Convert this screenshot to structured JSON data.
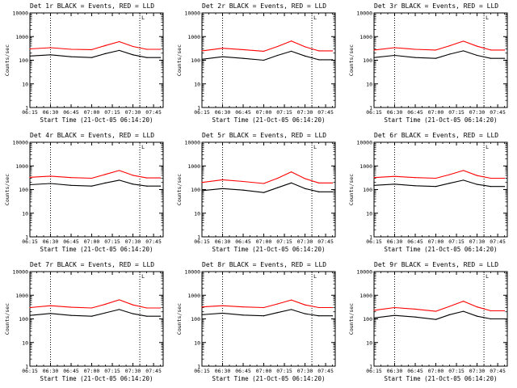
{
  "chart_data": [
    {
      "type": "line",
      "title": "Det 1r BLACK = Events, RED = LLD",
      "xlabel": "Start Time (21-Oct-05 06:14:20)",
      "ylabel": "Counts/sec",
      "yscale": "log",
      "ylim": [
        1,
        10000
      ],
      "x_ticks": [
        "06:15",
        "06:30",
        "06:45",
        "07:00",
        "07:15",
        "07:30",
        "07:45"
      ],
      "y_ticks": [
        "1",
        "10",
        "100",
        "1000",
        "10000"
      ],
      "vlines": [
        "06:30",
        "07:35"
      ],
      "marker_label": "L",
      "x": [
        "06:15",
        "06:30",
        "06:45",
        "07:00",
        "07:10",
        "07:20",
        "07:30",
        "07:40",
        "07:50"
      ],
      "series": [
        {
          "name": "BLACK = Events",
          "color": "#000000",
          "values": [
            150,
            170,
            140,
            130,
            190,
            260,
            170,
            130,
            130
          ]
        },
        {
          "name": "RED = LLD",
          "color": "#ff0000",
          "values": [
            300,
            340,
            290,
            280,
            420,
            610,
            380,
            290,
            290
          ]
        }
      ]
    },
    {
      "type": "line",
      "title": "Det 2r BLACK = Events, RED = LLD",
      "xlabel": "Start Time (21-Oct-05 06:14:20)",
      "ylabel": "Counts/sec",
      "yscale": "log",
      "ylim": [
        1,
        10000
      ],
      "x_ticks": [
        "06:15",
        "06:30",
        "06:45",
        "07:00",
        "07:15",
        "07:30",
        "07:45"
      ],
      "y_ticks": [
        "1",
        "10",
        "100",
        "1000",
        "10000"
      ],
      "vlines": [
        "06:30",
        "07:35"
      ],
      "marker_label": "L",
      "x": [
        "06:15",
        "06:30",
        "06:45",
        "07:00",
        "07:10",
        "07:20",
        "07:30",
        "07:40",
        "07:50"
      ],
      "series": [
        {
          "name": "BLACK = Events",
          "color": "#000000",
          "values": [
            110,
            140,
            120,
            100,
            160,
            240,
            150,
            105,
            105
          ]
        },
        {
          "name": "RED = LLD",
          "color": "#ff0000",
          "values": [
            250,
            320,
            280,
            240,
            380,
            650,
            370,
            250,
            250
          ]
        }
      ]
    },
    {
      "type": "line",
      "title": "Det 3r BLACK = Events, RED = LLD",
      "xlabel": "Start Time (21-Oct-05 06:14:20)",
      "ylabel": "Counts/sec",
      "yscale": "log",
      "ylim": [
        1,
        10000
      ],
      "x_ticks": [
        "06:15",
        "06:30",
        "06:45",
        "07:00",
        "07:15",
        "07:30",
        "07:45"
      ],
      "y_ticks": [
        "1",
        "10",
        "100",
        "1000",
        "10000"
      ],
      "vlines": [
        "06:30",
        "07:35"
      ],
      "marker_label": "L",
      "x": [
        "06:15",
        "06:30",
        "06:45",
        "07:00",
        "07:10",
        "07:20",
        "07:30",
        "07:40",
        "07:50"
      ],
      "series": [
        {
          "name": "BLACK = Events",
          "color": "#000000",
          "values": [
            130,
            160,
            130,
            120,
            180,
            250,
            160,
            120,
            120
          ]
        },
        {
          "name": "RED = LLD",
          "color": "#ff0000",
          "values": [
            270,
            340,
            290,
            270,
            410,
            640,
            390,
            270,
            270
          ]
        }
      ]
    },
    {
      "type": "line",
      "title": "Det 4r BLACK = Events, RED = LLD",
      "xlabel": "Start Time (21-Oct-05 06:14:20)",
      "ylabel": "Counts/sec",
      "yscale": "log",
      "ylim": [
        1,
        10000
      ],
      "x_ticks": [
        "06:15",
        "06:30",
        "06:45",
        "07:00",
        "07:15",
        "07:30",
        "07:45"
      ],
      "y_ticks": [
        "1",
        "10",
        "100",
        "1000",
        "10000"
      ],
      "vlines": [
        "06:30",
        "07:35"
      ],
      "marker_label": "L",
      "x": [
        "06:15",
        "06:30",
        "06:45",
        "07:00",
        "07:10",
        "07:20",
        "07:30",
        "07:40",
        "07:50"
      ],
      "series": [
        {
          "name": "BLACK = Events",
          "color": "#000000",
          "values": [
            160,
            180,
            150,
            140,
            190,
            250,
            170,
            140,
            140
          ]
        },
        {
          "name": "RED = LLD",
          "color": "#ff0000",
          "values": [
            330,
            370,
            320,
            300,
            440,
            640,
            400,
            310,
            310
          ]
        }
      ]
    },
    {
      "type": "line",
      "title": "Det 5r BLACK = Events, RED = LLD",
      "xlabel": "Start Time (21-Oct-05 06:14:20)",
      "ylabel": "Counts/sec",
      "yscale": "log",
      "ylim": [
        1,
        10000
      ],
      "x_ticks": [
        "06:15",
        "06:30",
        "06:45",
        "07:00",
        "07:15",
        "07:30",
        "07:45"
      ],
      "y_ticks": [
        "1",
        "10",
        "100",
        "1000",
        "10000"
      ],
      "vlines": [
        "06:30",
        "07:35"
      ],
      "marker_label": "L",
      "x": [
        "06:15",
        "06:30",
        "06:45",
        "07:00",
        "07:10",
        "07:20",
        "07:30",
        "07:40",
        "07:50"
      ],
      "series": [
        {
          "name": "BLACK = Events",
          "color": "#000000",
          "values": [
            90,
            110,
            95,
            75,
            120,
            190,
            110,
            80,
            80
          ]
        },
        {
          "name": "RED = LLD",
          "color": "#ff0000",
          "values": [
            200,
            260,
            220,
            180,
            300,
            560,
            290,
            190,
            190
          ]
        }
      ]
    },
    {
      "type": "line",
      "title": "Det 6r BLACK = Events, RED = LLD",
      "xlabel": "Start Time (21-Oct-05 06:14:20)",
      "ylabel": "Counts/sec",
      "yscale": "log",
      "ylim": [
        1,
        10000
      ],
      "x_ticks": [
        "06:15",
        "06:30",
        "06:45",
        "07:00",
        "07:15",
        "07:30",
        "07:45"
      ],
      "y_ticks": [
        "1",
        "10",
        "100",
        "1000",
        "10000"
      ],
      "vlines": [
        "06:30",
        "07:35"
      ],
      "marker_label": "L",
      "x": [
        "06:15",
        "06:30",
        "06:45",
        "07:00",
        "07:10",
        "07:20",
        "07:30",
        "07:40",
        "07:50"
      ],
      "series": [
        {
          "name": "BLACK = Events",
          "color": "#000000",
          "values": [
            150,
            170,
            145,
            135,
            185,
            250,
            165,
            135,
            135
          ]
        },
        {
          "name": "RED = LLD",
          "color": "#ff0000",
          "values": [
            320,
            360,
            320,
            300,
            430,
            640,
            390,
            300,
            300
          ]
        }
      ]
    },
    {
      "type": "line",
      "title": "Det 7r BLACK = Events, RED = LLD",
      "xlabel": "Start Time (21-Oct-05 06:14:20)",
      "ylabel": "Counts/sec",
      "yscale": "log",
      "ylim": [
        1,
        10000
      ],
      "x_ticks": [
        "06:15",
        "06:30",
        "06:45",
        "07:00",
        "07:15",
        "07:30",
        "07:45"
      ],
      "y_ticks": [
        "1",
        "10",
        "100",
        "1000",
        "10000"
      ],
      "vlines": [
        "06:30",
        "07:35"
      ],
      "marker_label": "L",
      "x": [
        "06:15",
        "06:30",
        "06:45",
        "07:00",
        "07:10",
        "07:20",
        "07:30",
        "07:40",
        "07:50"
      ],
      "series": [
        {
          "name": "BLACK = Events",
          "color": "#000000",
          "values": [
            140,
            170,
            140,
            130,
            180,
            250,
            165,
            130,
            130
          ]
        },
        {
          "name": "RED = LLD",
          "color": "#ff0000",
          "values": [
            300,
            360,
            310,
            290,
            420,
            640,
            390,
            290,
            290
          ]
        }
      ]
    },
    {
      "type": "line",
      "title": "Det 8r BLACK = Events, RED = LLD",
      "xlabel": "Start Time (21-Oct-05 06:14:20)",
      "ylabel": "Counts/sec",
      "yscale": "log",
      "ylim": [
        1,
        10000
      ],
      "x_ticks": [
        "06:15",
        "06:30",
        "06:45",
        "07:00",
        "07:15",
        "07:30",
        "07:45"
      ],
      "y_ticks": [
        "1",
        "10",
        "100",
        "1000",
        "10000"
      ],
      "vlines": [
        "06:30",
        "07:35"
      ],
      "marker_label": "L",
      "x": [
        "06:15",
        "06:30",
        "06:45",
        "07:00",
        "07:10",
        "07:20",
        "07:30",
        "07:40",
        "07:50"
      ],
      "series": [
        {
          "name": "BLACK = Events",
          "color": "#000000",
          "values": [
            150,
            175,
            145,
            135,
            185,
            250,
            165,
            135,
            135
          ]
        },
        {
          "name": "RED = LLD",
          "color": "#ff0000",
          "values": [
            320,
            360,
            320,
            300,
            430,
            630,
            390,
            300,
            300
          ]
        }
      ]
    },
    {
      "type": "line",
      "title": "Det 9r BLACK = Events, RED = LLD",
      "xlabel": "Start Time (21-Oct-05 06:14:20)",
      "ylabel": "Counts/sec",
      "yscale": "log",
      "ylim": [
        1,
        10000
      ],
      "x_ticks": [
        "06:15",
        "06:30",
        "06:45",
        "07:00",
        "07:15",
        "07:30",
        "07:45"
      ],
      "y_ticks": [
        "1",
        "10",
        "100",
        "1000",
        "10000"
      ],
      "vlines": [
        "06:30",
        "07:35"
      ],
      "marker_label": "L",
      "x": [
        "06:15",
        "06:30",
        "06:45",
        "07:00",
        "07:10",
        "07:20",
        "07:30",
        "07:40",
        "07:50"
      ],
      "series": [
        {
          "name": "BLACK = Events",
          "color": "#000000",
          "values": [
            110,
            140,
            120,
            95,
            150,
            210,
            130,
            100,
            100
          ]
        },
        {
          "name": "RED = LLD",
          "color": "#ff0000",
          "values": [
            230,
            300,
            260,
            210,
            340,
            560,
            320,
            220,
            220
          ]
        }
      ]
    }
  ]
}
